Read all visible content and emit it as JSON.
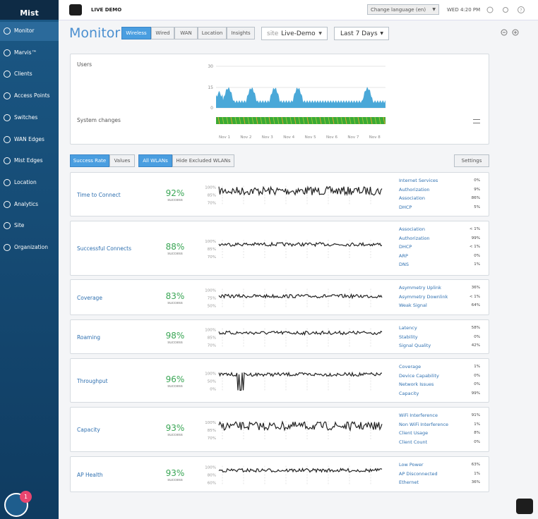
{
  "sidebar": {
    "logo": "Mist",
    "menu": [
      "Monitor",
      "Marvis™",
      "Clients",
      "Access Points",
      "Switches",
      "WAN Edges",
      "Mist Edges",
      "Location",
      "Analytics",
      "Site",
      "Organization"
    ],
    "badge": "1"
  },
  "topbar": {
    "org": "LIVE DEMO",
    "language": "Change language (en)",
    "time": "WED 4:20 PM"
  },
  "header": {
    "title": "Monitor",
    "tabs": [
      "Wireless",
      "Wired",
      "WAN",
      "Location",
      "Insights"
    ],
    "site_label": "site",
    "site": "Live-Demo",
    "range": "Last 7 Days"
  },
  "overview": {
    "users_label": "Users",
    "changes_label": "System changes",
    "yticks": [
      "30",
      "15",
      "0"
    ],
    "dates": [
      "Nov 1",
      "Nov 2",
      "Nov 3",
      "Nov 4",
      "Nov 5",
      "Nov 6",
      "Nov 7",
      "Nov 8"
    ]
  },
  "toolbar": {
    "metric_tabs": [
      "Success Rate",
      "Values"
    ],
    "wlan_tabs": [
      "All WLANs",
      "Hide Excluded WLANs"
    ],
    "settings": "Settings"
  },
  "sle": [
    {
      "name": "Time to Connect",
      "value": "92%",
      "caption": "success",
      "axis": [
        "100%",
        "85%",
        "70%"
      ],
      "factors": [
        {
          "label": "Internet Services",
          "share": "0%"
        },
        {
          "label": "Authorization",
          "share": "9%"
        },
        {
          "label": "Association",
          "share": "86%"
        },
        {
          "label": "DHCP",
          "share": "5%"
        }
      ]
    },
    {
      "name": "Successful Connects",
      "value": "88%",
      "caption": "success",
      "axis": [
        "100%",
        "85%",
        "70%"
      ],
      "factors": [
        {
          "label": "Association",
          "share": "< 1%"
        },
        {
          "label": "Authorization",
          "share": "99%"
        },
        {
          "label": "DHCP",
          "share": "< 1%"
        },
        {
          "label": "ARP",
          "share": "0%"
        },
        {
          "label": "DNS",
          "share": "1%"
        }
      ]
    },
    {
      "name": "Coverage",
      "value": "83%",
      "caption": "success",
      "axis": [
        "100%",
        "75%",
        "50%"
      ],
      "factors": [
        {
          "label": "Asymmetry Uplink",
          "share": "36%"
        },
        {
          "label": "Asymmetry Downlink",
          "share": "< 1%"
        },
        {
          "label": "Weak Signal",
          "share": "64%"
        }
      ]
    },
    {
      "name": "Roaming",
      "value": "98%",
      "caption": "success",
      "axis": [
        "100%",
        "85%",
        "70%"
      ],
      "factors": [
        {
          "label": "Latency",
          "share": "58%"
        },
        {
          "label": "Stability",
          "share": "0%"
        },
        {
          "label": "Signal Quality",
          "share": "42%"
        }
      ]
    },
    {
      "name": "Throughput",
      "value": "96%",
      "caption": "success",
      "axis": [
        "100%",
        "50%",
        "0%"
      ],
      "factors": [
        {
          "label": "Coverage",
          "share": "1%"
        },
        {
          "label": "Device Capability",
          "share": "0%"
        },
        {
          "label": "Network Issues",
          "share": "0%"
        },
        {
          "label": "Capacity",
          "share": "99%"
        }
      ]
    },
    {
      "name": "Capacity",
      "value": "93%",
      "caption": "success",
      "axis": [
        "100%",
        "85%",
        "70%"
      ],
      "factors": [
        {
          "label": "WiFi Interference",
          "share": "91%"
        },
        {
          "label": "Non WiFi Interference",
          "share": "1%"
        },
        {
          "label": "Client Usage",
          "share": "8%"
        },
        {
          "label": "Client Count",
          "share": "0%"
        }
      ]
    },
    {
      "name": "AP Health",
      "value": "93%",
      "caption": "success",
      "axis": [
        "100%",
        "80%",
        "60%"
      ],
      "factors": [
        {
          "label": "Low Power",
          "share": "63%"
        },
        {
          "label": "AP Disconnected",
          "share": "1%"
        },
        {
          "label": "Ethernet",
          "share": "36%"
        }
      ]
    }
  ]
}
